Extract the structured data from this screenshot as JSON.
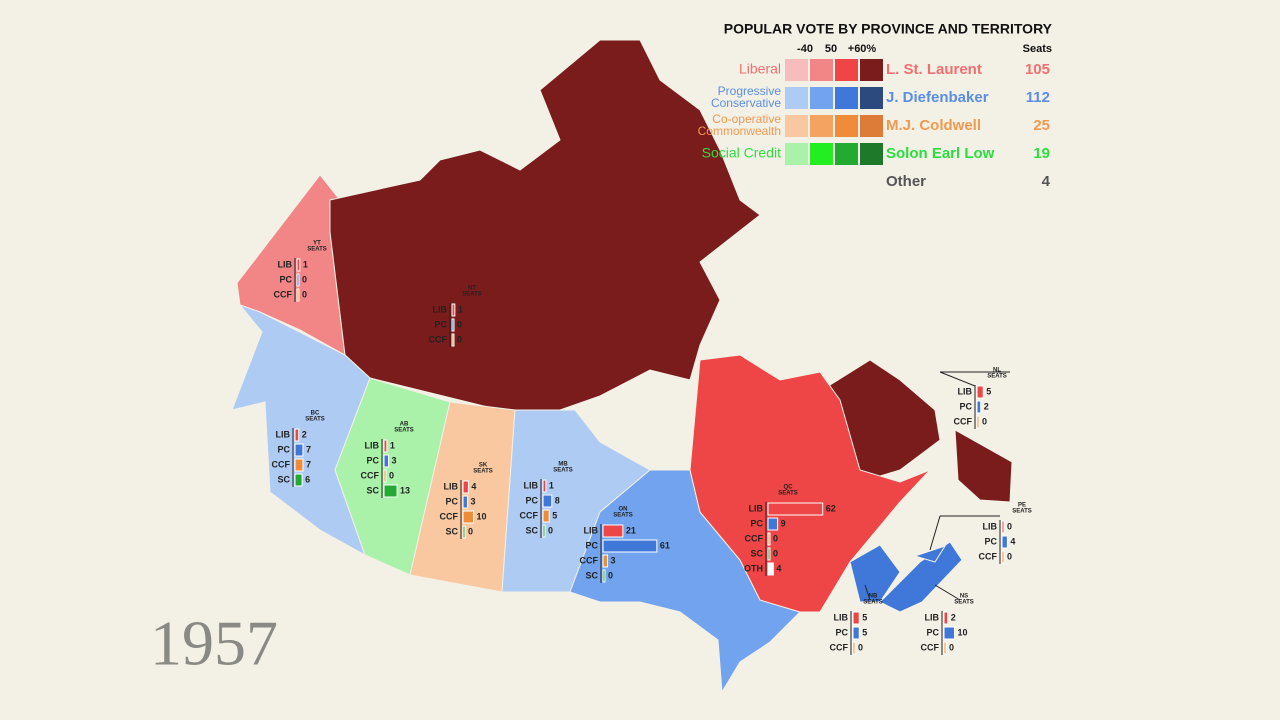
{
  "legend": {
    "title": "POPULAR VOTE BY PROVINCE AND TERRITORY",
    "scale_labels": [
      "-40",
      "50",
      "+60%"
    ],
    "seats_header": "Seats",
    "parties": [
      {
        "name_lines": [
          "Liberal"
        ],
        "leader": "L. St. Laurent",
        "seats": 105,
        "color": "#f07070",
        "swatches": [
          "#f7bcbc",
          "#f28585",
          "#ee4646",
          "#7a1c1c"
        ]
      },
      {
        "name_lines": [
          "Progressive",
          "Conservative"
        ],
        "leader": "J. Diefenbaker",
        "seats": 112,
        "color": "#5a8ee0",
        "swatches": [
          "#aecbf4",
          "#72a3ee",
          "#3f78d8",
          "#2c4a7e"
        ]
      },
      {
        "name_lines": [
          "Co-operative",
          "Commonwealth"
        ],
        "leader": "M.J. Coldwell",
        "seats": 25,
        "color": "#f09a50",
        "swatches": [
          "#f9c8a0",
          "#f4a460",
          "#ef8c3a",
          "#dc7c38"
        ]
      },
      {
        "name_lines": [
          "Social Credit"
        ],
        "leader": "Solon Earl Low",
        "seats": 19,
        "color": "#2edc40",
        "swatches": [
          "#aaf2aa",
          "#22ee22",
          "#22aa33",
          "#1e7a2a"
        ]
      }
    ],
    "other": {
      "name": "Other",
      "seats": 4,
      "color": "#555555"
    }
  },
  "year": "1957",
  "seats_label": "SEATS",
  "bar_colors": {
    "LIB": "#ee4646",
    "PC": "#3f78d8",
    "CCF": "#ef8c3a",
    "SC": "#22aa33",
    "OTH": "#ffffff"
  },
  "regions": [
    {
      "code": "YT",
      "rows": [
        {
          "party": "LIB",
          "seats": 1
        },
        {
          "party": "PC",
          "seats": 0
        },
        {
          "party": "CCF",
          "seats": 0
        }
      ]
    },
    {
      "code": "NT",
      "rows": [
        {
          "party": "LIB",
          "seats": 1
        },
        {
          "party": "PC",
          "seats": 0
        },
        {
          "party": "CCF",
          "seats": 0
        }
      ]
    },
    {
      "code": "BC",
      "rows": [
        {
          "party": "LIB",
          "seats": 2
        },
        {
          "party": "PC",
          "seats": 7
        },
        {
          "party": "CCF",
          "seats": 7
        },
        {
          "party": "SC",
          "seats": 6
        }
      ]
    },
    {
      "code": "AB",
      "rows": [
        {
          "party": "LIB",
          "seats": 1
        },
        {
          "party": "PC",
          "seats": 3
        },
        {
          "party": "CCF",
          "seats": 0
        },
        {
          "party": "SC",
          "seats": 13
        }
      ]
    },
    {
      "code": "SK",
      "rows": [
        {
          "party": "LIB",
          "seats": 4
        },
        {
          "party": "PC",
          "seats": 3
        },
        {
          "party": "CCF",
          "seats": 10
        },
        {
          "party": "SC",
          "seats": 0
        }
      ]
    },
    {
      "code": "MB",
      "rows": [
        {
          "party": "LIB",
          "seats": 1
        },
        {
          "party": "PC",
          "seats": 8
        },
        {
          "party": "CCF",
          "seats": 5
        },
        {
          "party": "SC",
          "seats": 0
        }
      ]
    },
    {
      "code": "ON",
      "rows": [
        {
          "party": "LIB",
          "seats": 21
        },
        {
          "party": "PC",
          "seats": 61
        },
        {
          "party": "CCF",
          "seats": 3
        },
        {
          "party": "SC",
          "seats": 0
        }
      ]
    },
    {
      "code": "QC",
      "rows": [
        {
          "party": "LIB",
          "seats": 62
        },
        {
          "party": "PC",
          "seats": 9
        },
        {
          "party": "CCF",
          "seats": 0
        },
        {
          "party": "SC",
          "seats": 0
        },
        {
          "party": "OTH",
          "seats": 4
        }
      ]
    },
    {
      "code": "NL",
      "rows": [
        {
          "party": "LIB",
          "seats": 5
        },
        {
          "party": "PC",
          "seats": 2
        },
        {
          "party": "CCF",
          "seats": 0
        }
      ]
    },
    {
      "code": "PE",
      "rows": [
        {
          "party": "LIB",
          "seats": 0
        },
        {
          "party": "PC",
          "seats": 4
        },
        {
          "party": "CCF",
          "seats": 0
        }
      ]
    },
    {
      "code": "NB",
      "rows": [
        {
          "party": "LIB",
          "seats": 5
        },
        {
          "party": "PC",
          "seats": 5
        },
        {
          "party": "CCF",
          "seats": 0
        }
      ]
    },
    {
      "code": "NS",
      "rows": [
        {
          "party": "LIB",
          "seats": 2
        },
        {
          "party": "PC",
          "seats": 10
        },
        {
          "party": "CCF",
          "seats": 0
        }
      ]
    }
  ]
}
